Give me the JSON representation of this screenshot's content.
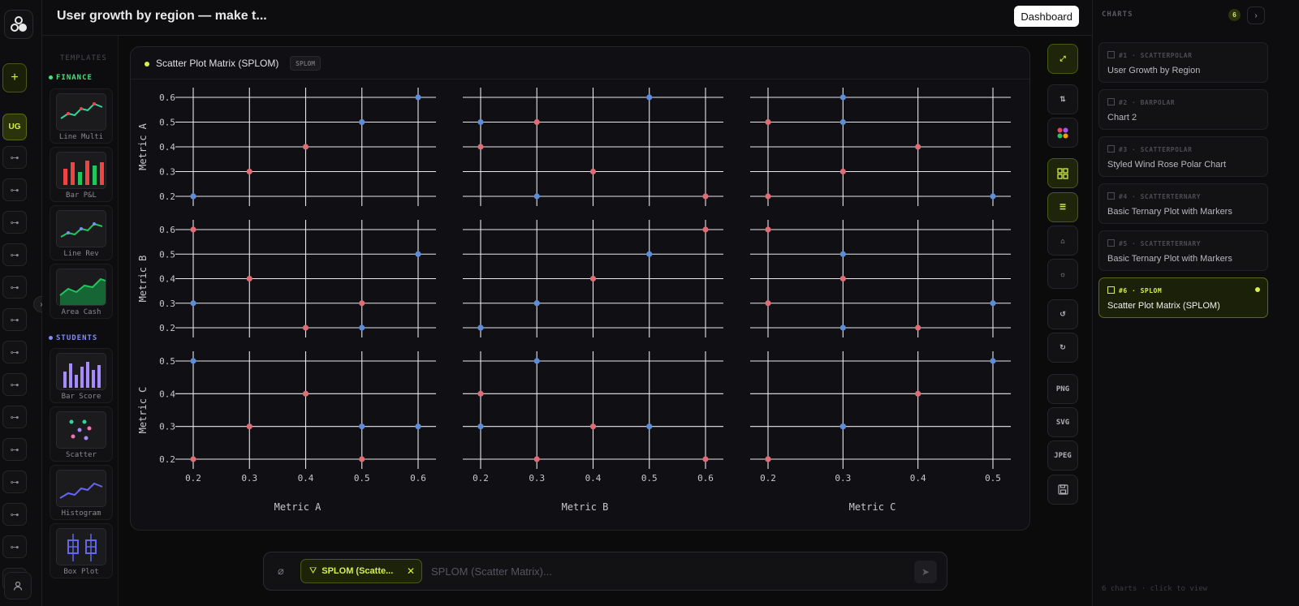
{
  "header": {
    "title": "User growth by region — make t...",
    "dashboard_label": "Dashboard"
  },
  "rail": {
    "add_label": "+",
    "active_label": "UG",
    "key_count": 14
  },
  "templates": {
    "heading": "TEMPLATES",
    "categories": [
      {
        "name": "FINANCE",
        "color": "#4ade80"
      },
      {
        "name": "STUDENTS",
        "color": "#818cf8"
      }
    ],
    "items": [
      {
        "label": "Line Multi"
      },
      {
        "label": "Bar P&L"
      },
      {
        "label": "Line Rev"
      },
      {
        "label": "Area Cash"
      },
      {
        "label": "Bar Score"
      },
      {
        "label": "Scatter"
      },
      {
        "label": "Histogram"
      },
      {
        "label": "Box Plot"
      }
    ]
  },
  "card": {
    "title": "Scatter Plot Matrix (SPLOM)",
    "badge": "SPLOM"
  },
  "chart_data": {
    "type": "scatter",
    "subtype": "splom",
    "dimensions": [
      "Metric A",
      "Metric B",
      "Metric C"
    ],
    "points": [
      {
        "a": 0.2,
        "b": 0.6,
        "c": 0.2,
        "color": "#e06c75"
      },
      {
        "a": 0.3,
        "b": 0.4,
        "c": 0.3,
        "color": "#e06c75"
      },
      {
        "a": 0.4,
        "b": 0.2,
        "c": 0.4,
        "color": "#e06c75"
      },
      {
        "a": 0.5,
        "b": 0.3,
        "c": 0.2,
        "color": "#e06c75"
      },
      {
        "a": 0.6,
        "b": 0.5,
        "c": 0.3,
        "color": "#5b8dd9"
      },
      {
        "a": 0.2,
        "b": 0.3,
        "c": 0.5,
        "color": "#5b8dd9"
      },
      {
        "a": 0.5,
        "b": 0.2,
        "c": 0.3,
        "color": "#5b8dd9"
      }
    ],
    "ticks": {
      "Metric A": [
        0.2,
        0.3,
        0.4,
        0.5,
        0.6
      ],
      "Metric B": [
        0.2,
        0.3,
        0.4,
        0.5,
        0.6
      ],
      "Metric C": [
        0.2,
        0.3,
        0.4,
        0.5
      ]
    },
    "grid": true,
    "colors": {
      "primary": "#e06c75",
      "secondary": "#5b8dd9"
    }
  },
  "tools": [
    "expand",
    "swap",
    "palette",
    "grid",
    "legend",
    "tag",
    "brightness",
    "undo",
    "redo",
    "PNG",
    "SVG",
    "JPEG",
    "save"
  ],
  "panel": {
    "heading": "CHARTS",
    "count": "6",
    "footer": "6 charts · click to view",
    "items": [
      {
        "meta": "#1 · SCATTERPOLAR",
        "name": "User Growth by Region"
      },
      {
        "meta": "#2 · BARPOLAR",
        "name": "Chart 2"
      },
      {
        "meta": "#3 · SCATTERPOLAR",
        "name": "Styled Wind Rose Polar Chart"
      },
      {
        "meta": "#4 · SCATTERTERNARY",
        "name": "Basic Ternary Plot with Markers"
      },
      {
        "meta": "#5 · SCATTERTERNARY",
        "name": "Basic Ternary Plot with Markers"
      },
      {
        "meta": "#6 · SPLOM",
        "name": "Scatter Plot Matrix (SPLOM)"
      }
    ]
  },
  "input": {
    "chip_label": "SPLOM (Scatte...",
    "placeholder": "SPLOM (Scatter Matrix)..."
  },
  "colors": {
    "accent": "#d4f04a",
    "bg": "#0b0b0c"
  }
}
